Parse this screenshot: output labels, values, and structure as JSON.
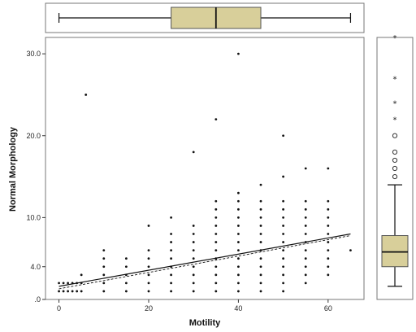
{
  "chart_data": {
    "type": "scatter",
    "title": "",
    "xlabel": "Motility",
    "ylabel": "Normal Morphology",
    "xlim": [
      -3,
      68
    ],
    "ylim": [
      0,
      32
    ],
    "x_ticks": [
      0,
      20,
      40,
      60
    ],
    "x_tick_labels": [
      "0",
      "20",
      "40",
      "60"
    ],
    "y_ticks": [
      0,
      4,
      10,
      20,
      30
    ],
    "y_tick_labels": [
      ".0",
      "4.0",
      "10.0",
      "20.0",
      "30.0"
    ],
    "grid": false,
    "colors": {
      "points": "#111111",
      "box_fill": "#d8cf9a",
      "frame": "#777777",
      "fit_line": "#111111"
    },
    "points": [
      [
        0,
        1
      ],
      [
        0,
        2
      ],
      [
        1,
        1
      ],
      [
        1,
        2
      ],
      [
        2,
        1
      ],
      [
        2,
        2
      ],
      [
        3,
        1
      ],
      [
        3,
        2
      ],
      [
        4,
        1
      ],
      [
        4,
        2
      ],
      [
        5,
        1
      ],
      [
        5,
        2
      ],
      [
        5,
        3
      ],
      [
        6,
        25
      ],
      [
        10,
        1
      ],
      [
        10,
        2
      ],
      [
        10,
        3
      ],
      [
        10,
        4
      ],
      [
        10,
        5
      ],
      [
        10,
        6
      ],
      [
        15,
        1
      ],
      [
        15,
        2
      ],
      [
        15,
        3
      ],
      [
        15,
        4
      ],
      [
        15,
        5
      ],
      [
        20,
        1
      ],
      [
        20,
        2
      ],
      [
        20,
        3
      ],
      [
        20,
        4
      ],
      [
        20,
        5
      ],
      [
        20,
        6
      ],
      [
        20,
        9
      ],
      [
        25,
        1
      ],
      [
        25,
        2
      ],
      [
        25,
        3
      ],
      [
        25,
        4
      ],
      [
        25,
        5
      ],
      [
        25,
        6
      ],
      [
        25,
        7
      ],
      [
        25,
        8
      ],
      [
        25,
        10
      ],
      [
        30,
        1
      ],
      [
        30,
        2
      ],
      [
        30,
        3
      ],
      [
        30,
        4
      ],
      [
        30,
        5
      ],
      [
        30,
        6
      ],
      [
        30,
        7
      ],
      [
        30,
        8
      ],
      [
        30,
        9
      ],
      [
        30,
        18
      ],
      [
        35,
        1
      ],
      [
        35,
        2
      ],
      [
        35,
        3
      ],
      [
        35,
        4
      ],
      [
        35,
        5
      ],
      [
        35,
        6
      ],
      [
        35,
        7
      ],
      [
        35,
        8
      ],
      [
        35,
        9
      ],
      [
        35,
        10
      ],
      [
        35,
        11
      ],
      [
        35,
        12
      ],
      [
        35,
        22
      ],
      [
        40,
        1
      ],
      [
        40,
        2
      ],
      [
        40,
        3
      ],
      [
        40,
        4
      ],
      [
        40,
        5
      ],
      [
        40,
        6
      ],
      [
        40,
        7
      ],
      [
        40,
        8
      ],
      [
        40,
        9
      ],
      [
        40,
        10
      ],
      [
        40,
        11
      ],
      [
        40,
        12
      ],
      [
        40,
        13
      ],
      [
        40,
        30
      ],
      [
        45,
        1
      ],
      [
        45,
        2
      ],
      [
        45,
        3
      ],
      [
        45,
        4
      ],
      [
        45,
        5
      ],
      [
        45,
        6
      ],
      [
        45,
        7
      ],
      [
        45,
        8
      ],
      [
        45,
        9
      ],
      [
        45,
        10
      ],
      [
        45,
        11
      ],
      [
        45,
        12
      ],
      [
        45,
        14
      ],
      [
        50,
        1
      ],
      [
        50,
        2
      ],
      [
        50,
        3
      ],
      [
        50,
        4
      ],
      [
        50,
        5
      ],
      [
        50,
        6
      ],
      [
        50,
        7
      ],
      [
        50,
        8
      ],
      [
        50,
        9
      ],
      [
        50,
        10
      ],
      [
        50,
        11
      ],
      [
        50,
        12
      ],
      [
        50,
        15
      ],
      [
        50,
        20
      ],
      [
        55,
        2
      ],
      [
        55,
        3
      ],
      [
        55,
        4
      ],
      [
        55,
        5
      ],
      [
        55,
        6
      ],
      [
        55,
        7
      ],
      [
        55,
        8
      ],
      [
        55,
        9
      ],
      [
        55,
        10
      ],
      [
        55,
        11
      ],
      [
        55,
        12
      ],
      [
        55,
        16
      ],
      [
        60,
        3
      ],
      [
        60,
        4
      ],
      [
        60,
        5
      ],
      [
        60,
        6
      ],
      [
        60,
        7
      ],
      [
        60,
        8
      ],
      [
        60,
        9
      ],
      [
        60,
        10
      ],
      [
        60,
        11
      ],
      [
        60,
        12
      ],
      [
        60,
        16
      ],
      [
        65,
        6
      ]
    ],
    "fit_lines": [
      {
        "style": "solid",
        "x": [
          0,
          65
        ],
        "y": [
          1.6,
          8.0
        ]
      },
      {
        "style": "dashed",
        "x": [
          0,
          65
        ],
        "y": [
          1.3,
          7.8
        ]
      }
    ],
    "marginal_boxplot_x": {
      "min": 0,
      "q1": 25,
      "median": 35,
      "q3": 45,
      "max": 65
    },
    "marginal_boxplot_y": {
      "min": 1.6,
      "q1": 4.0,
      "median": 5.8,
      "q3": 7.8,
      "max": 14.0,
      "outliers": [
        15.0,
        16.0,
        17.0,
        18.0,
        20.0
      ],
      "extremes": [
        22.0,
        24.0,
        27.0,
        32.0
      ]
    }
  }
}
